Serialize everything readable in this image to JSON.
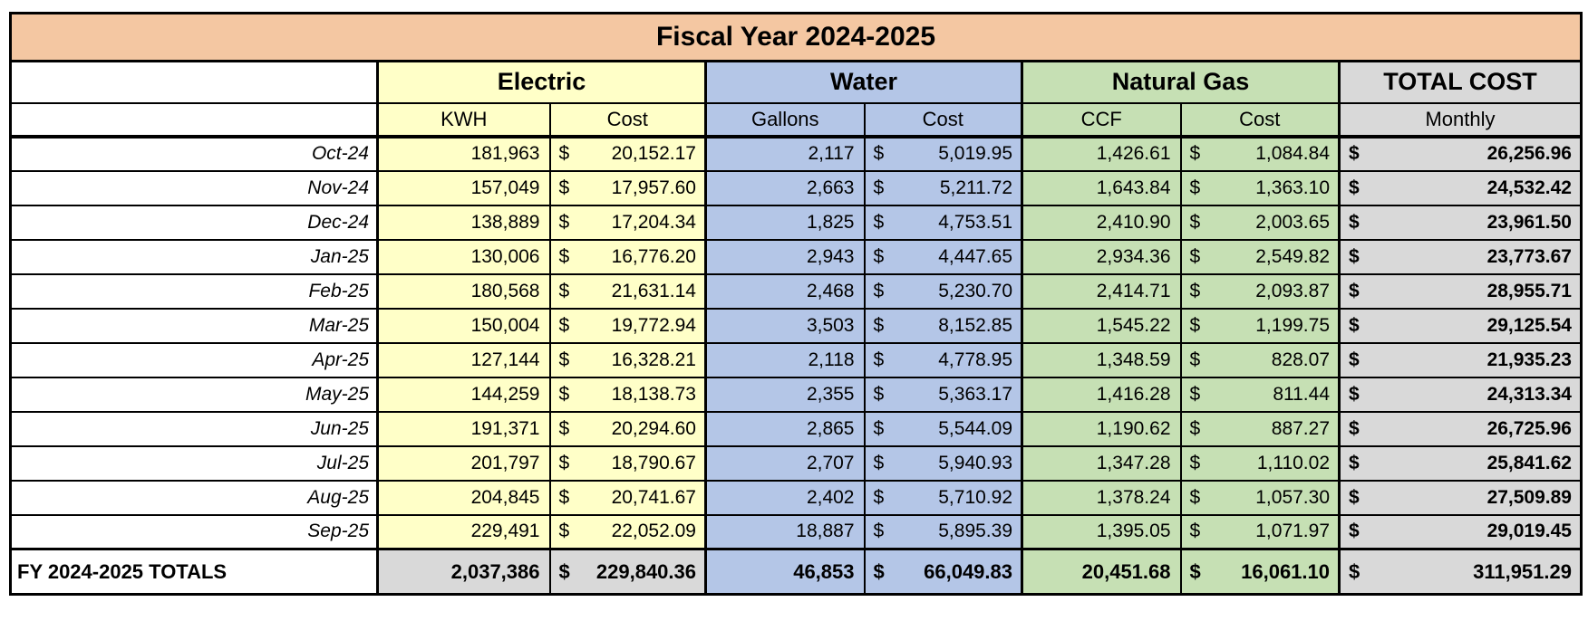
{
  "currency_symbol": "$",
  "title": "Fiscal Year 2024-2025",
  "sections": {
    "electric": "Electric",
    "water": "Water",
    "natural_gas": "Natural Gas",
    "total_cost": "TOTAL COST"
  },
  "subheaders": {
    "kwh": "KWH",
    "electric_cost": "Cost",
    "gallons": "Gallons",
    "water_cost": "Cost",
    "ccf": "CCF",
    "gas_cost": "Cost",
    "monthly": "Monthly"
  },
  "colors": {
    "title_bg": "#f4c7a2",
    "electric_bg": "#ffffc8",
    "water_bg": "#b4c6e7",
    "natural_gas_bg": "#c6e0b4",
    "total_bg": "#d9d9d9",
    "border": "#000000"
  },
  "rows": [
    {
      "month": "Oct-24",
      "kwh": "181,963",
      "electric_cost": "20,152.17",
      "gallons": "2,117",
      "water_cost": "5,019.95",
      "ccf": "1,426.61",
      "gas_cost": "1,084.84",
      "monthly_total": "26,256.96"
    },
    {
      "month": "Nov-24",
      "kwh": "157,049",
      "electric_cost": "17,957.60",
      "gallons": "2,663",
      "water_cost": "5,211.72",
      "ccf": "1,643.84",
      "gas_cost": "1,363.10",
      "monthly_total": "24,532.42"
    },
    {
      "month": "Dec-24",
      "kwh": "138,889",
      "electric_cost": "17,204.34",
      "gallons": "1,825",
      "water_cost": "4,753.51",
      "ccf": "2,410.90",
      "gas_cost": "2,003.65",
      "monthly_total": "23,961.50"
    },
    {
      "month": "Jan-25",
      "kwh": "130,006",
      "electric_cost": "16,776.20",
      "gallons": "2,943",
      "water_cost": "4,447.65",
      "ccf": "2,934.36",
      "gas_cost": "2,549.82",
      "monthly_total": "23,773.67"
    },
    {
      "month": "Feb-25",
      "kwh": "180,568",
      "electric_cost": "21,631.14",
      "gallons": "2,468",
      "water_cost": "5,230.70",
      "ccf": "2,414.71",
      "gas_cost": "2,093.87",
      "monthly_total": "28,955.71"
    },
    {
      "month": "Mar-25",
      "kwh": "150,004",
      "electric_cost": "19,772.94",
      "gallons": "3,503",
      "water_cost": "8,152.85",
      "ccf": "1,545.22",
      "gas_cost": "1,199.75",
      "monthly_total": "29,125.54"
    },
    {
      "month": "Apr-25",
      "kwh": "127,144",
      "electric_cost": "16,328.21",
      "gallons": "2,118",
      "water_cost": "4,778.95",
      "ccf": "1,348.59",
      "gas_cost": "828.07",
      "monthly_total": "21,935.23"
    },
    {
      "month": "May-25",
      "kwh": "144,259",
      "electric_cost": "18,138.73",
      "gallons": "2,355",
      "water_cost": "5,363.17",
      "ccf": "1,416.28",
      "gas_cost": "811.44",
      "monthly_total": "24,313.34"
    },
    {
      "month": "Jun-25",
      "kwh": "191,371",
      "electric_cost": "20,294.60",
      "gallons": "2,865",
      "water_cost": "5,544.09",
      "ccf": "1,190.62",
      "gas_cost": "887.27",
      "monthly_total": "26,725.96"
    },
    {
      "month": "Jul-25",
      "kwh": "201,797",
      "electric_cost": "18,790.67",
      "gallons": "2,707",
      "water_cost": "5,940.93",
      "ccf": "1,347.28",
      "gas_cost": "1,110.02",
      "monthly_total": "25,841.62"
    },
    {
      "month": "Aug-25",
      "kwh": "204,845",
      "electric_cost": "20,741.67",
      "gallons": "2,402",
      "water_cost": "5,710.92",
      "ccf": "1,378.24",
      "gas_cost": "1,057.30",
      "monthly_total": "27,509.89"
    },
    {
      "month": "Sep-25",
      "kwh": "229,491",
      "electric_cost": "22,052.09",
      "gallons": "18,887",
      "water_cost": "5,895.39",
      "ccf": "1,395.05",
      "gas_cost": "1,071.97",
      "monthly_total": "29,019.45"
    }
  ],
  "totals": {
    "label": "FY 2024-2025 TOTALS",
    "kwh": "2,037,386",
    "electric_cost": "229,840.36",
    "gallons": "46,853",
    "water_cost": "66,049.83",
    "ccf": "20,451.68",
    "gas_cost": "16,061.10",
    "monthly_total": "311,951.29"
  }
}
